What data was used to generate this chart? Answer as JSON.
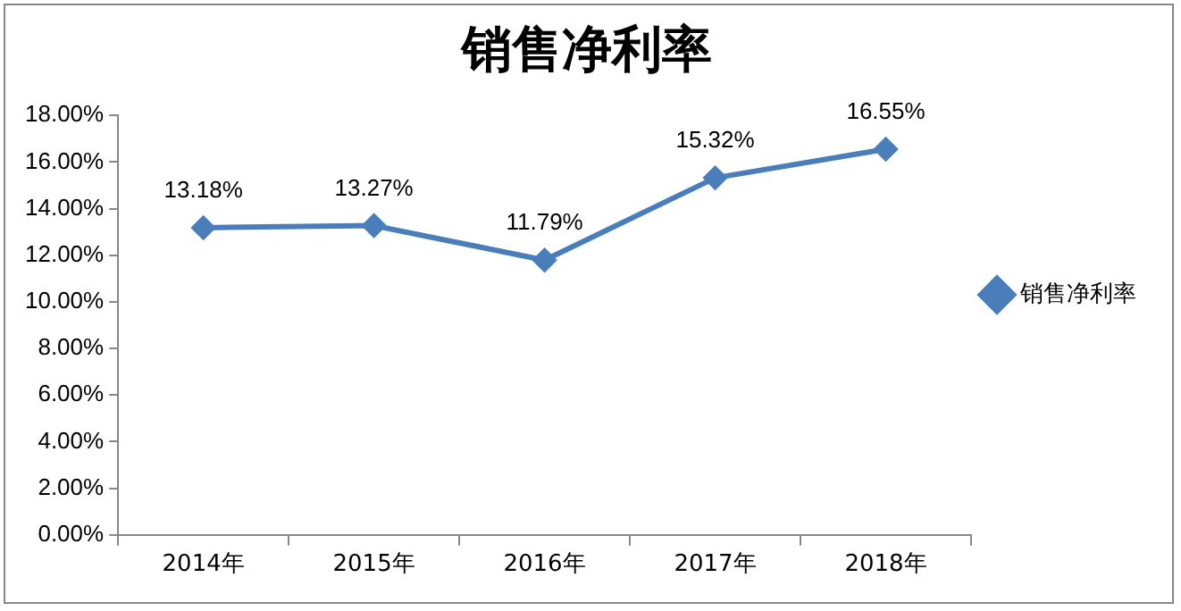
{
  "chart_data": {
    "type": "line",
    "title": "销售净利率",
    "categories": [
      "2014年",
      "2015年",
      "2016年",
      "2017年",
      "2018年"
    ],
    "series": [
      {
        "name": "销售净利率",
        "color": "#4a7ebb",
        "values": [
          13.18,
          13.27,
          11.79,
          15.32,
          16.55
        ],
        "value_labels": [
          "13.18%",
          "13.27%",
          "11.79%",
          "15.32%",
          "16.55%"
        ]
      }
    ],
    "ylim": [
      0,
      18
    ],
    "yticks": [
      {
        "value": 0,
        "label": "0.00%"
      },
      {
        "value": 2,
        "label": "2.00%"
      },
      {
        "value": 4,
        "label": "4.00%"
      },
      {
        "value": 6,
        "label": "6.00%"
      },
      {
        "value": 8,
        "label": "8.00%"
      },
      {
        "value": 10,
        "label": "10.00%"
      },
      {
        "value": 12,
        "label": "12.00%"
      },
      {
        "value": 14,
        "label": "14.00%"
      },
      {
        "value": 16,
        "label": "16.00%"
      },
      {
        "value": 18,
        "label": "18.00%"
      }
    ],
    "grid": false,
    "legend": "right",
    "marker": "diamond",
    "line_style": "solid"
  }
}
